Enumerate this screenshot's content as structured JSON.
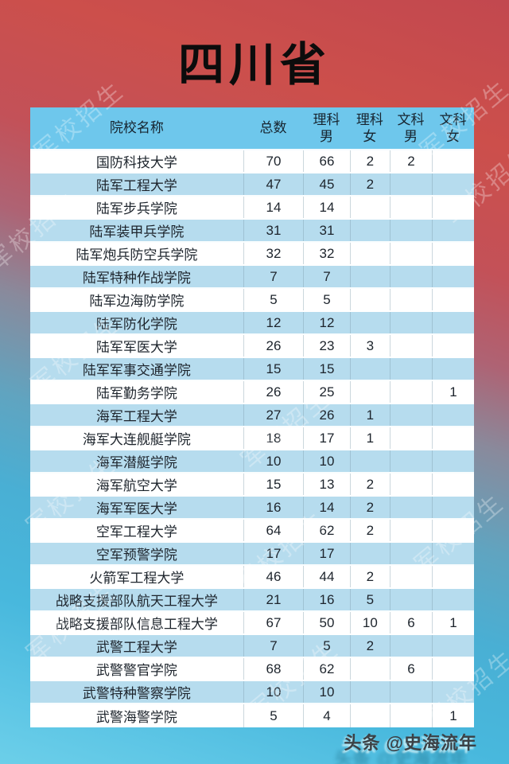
{
  "title": "四川省",
  "watermark_text": "军校招生",
  "credit": "头条 @史海流年",
  "colors": {
    "header_bg": "#6ec7ec",
    "row_bg": "#ffffff",
    "row_alt_bg": "#b6dcee",
    "bg_top_red": "#c2484f",
    "bg_bottom_blue": "#6ccfe9",
    "grid_line": "#7d9baa",
    "text": "#1d242c"
  },
  "table": {
    "columns": [
      {
        "id": "name",
        "l1": "院校名称",
        "l2": ""
      },
      {
        "id": "total",
        "l1": "总数",
        "l2": ""
      },
      {
        "id": "sci_male",
        "l1": "理科",
        "l2": "男"
      },
      {
        "id": "sci_female",
        "l1": "理科",
        "l2": "女"
      },
      {
        "id": "art_male",
        "l1": "文科",
        "l2": "男"
      },
      {
        "id": "art_female",
        "l1": "文科",
        "l2": "女"
      }
    ],
    "rows": [
      {
        "name": "国防科技大学",
        "values": [
          "70",
          "66",
          "2",
          "2",
          ""
        ]
      },
      {
        "name": "陆军工程大学",
        "values": [
          "47",
          "45",
          "2",
          "",
          ""
        ]
      },
      {
        "name": "陆军步兵学院",
        "values": [
          "14",
          "14",
          "",
          "",
          ""
        ]
      },
      {
        "name": "陆军装甲兵学院",
        "values": [
          "31",
          "31",
          "",
          "",
          ""
        ]
      },
      {
        "name": "陆军炮兵防空兵学院",
        "values": [
          "32",
          "32",
          "",
          "",
          ""
        ]
      },
      {
        "name": "陆军特种作战学院",
        "values": [
          "7",
          "7",
          "",
          "",
          ""
        ]
      },
      {
        "name": "陆军边海防学院",
        "values": [
          "5",
          "5",
          "",
          "",
          ""
        ]
      },
      {
        "name": "陆军防化学院",
        "values": [
          "12",
          "12",
          "",
          "",
          ""
        ]
      },
      {
        "name": "陆军军医大学",
        "values": [
          "26",
          "23",
          "3",
          "",
          ""
        ]
      },
      {
        "name": "陆军军事交通学院",
        "values": [
          "15",
          "15",
          "",
          "",
          ""
        ]
      },
      {
        "name": "陆军勤务学院",
        "values": [
          "26",
          "25",
          "",
          "",
          "1"
        ]
      },
      {
        "name": "海军工程大学",
        "values": [
          "27",
          "26",
          "1",
          "",
          ""
        ]
      },
      {
        "name": "海军大连舰艇学院",
        "values": [
          "18",
          "17",
          "1",
          "",
          ""
        ]
      },
      {
        "name": "海军潜艇学院",
        "values": [
          "10",
          "10",
          "",
          "",
          ""
        ]
      },
      {
        "name": "海军航空大学",
        "values": [
          "15",
          "13",
          "2",
          "",
          ""
        ]
      },
      {
        "name": "海军军医大学",
        "values": [
          "16",
          "14",
          "2",
          "",
          ""
        ]
      },
      {
        "name": "空军工程大学",
        "values": [
          "64",
          "62",
          "2",
          "",
          ""
        ]
      },
      {
        "name": "空军预警学院",
        "values": [
          "17",
          "17",
          "",
          "",
          ""
        ]
      },
      {
        "name": "火箭军工程大学",
        "values": [
          "46",
          "44",
          "2",
          "",
          ""
        ]
      },
      {
        "name": "战略支援部队航天工程大学",
        "values": [
          "21",
          "16",
          "5",
          "",
          ""
        ]
      },
      {
        "name": "战略支援部队信息工程大学",
        "values": [
          "67",
          "50",
          "10",
          "6",
          "1"
        ]
      },
      {
        "name": "武警工程大学",
        "values": [
          "7",
          "5",
          "2",
          "",
          ""
        ]
      },
      {
        "name": "武警警官学院",
        "values": [
          "68",
          "62",
          "",
          "6",
          ""
        ]
      },
      {
        "name": "武警特种警察学院",
        "values": [
          "10",
          "10",
          "",
          "",
          ""
        ]
      },
      {
        "name": "武警海警学院",
        "values": [
          "5",
          "4",
          "",
          "",
          "1"
        ]
      }
    ]
  }
}
